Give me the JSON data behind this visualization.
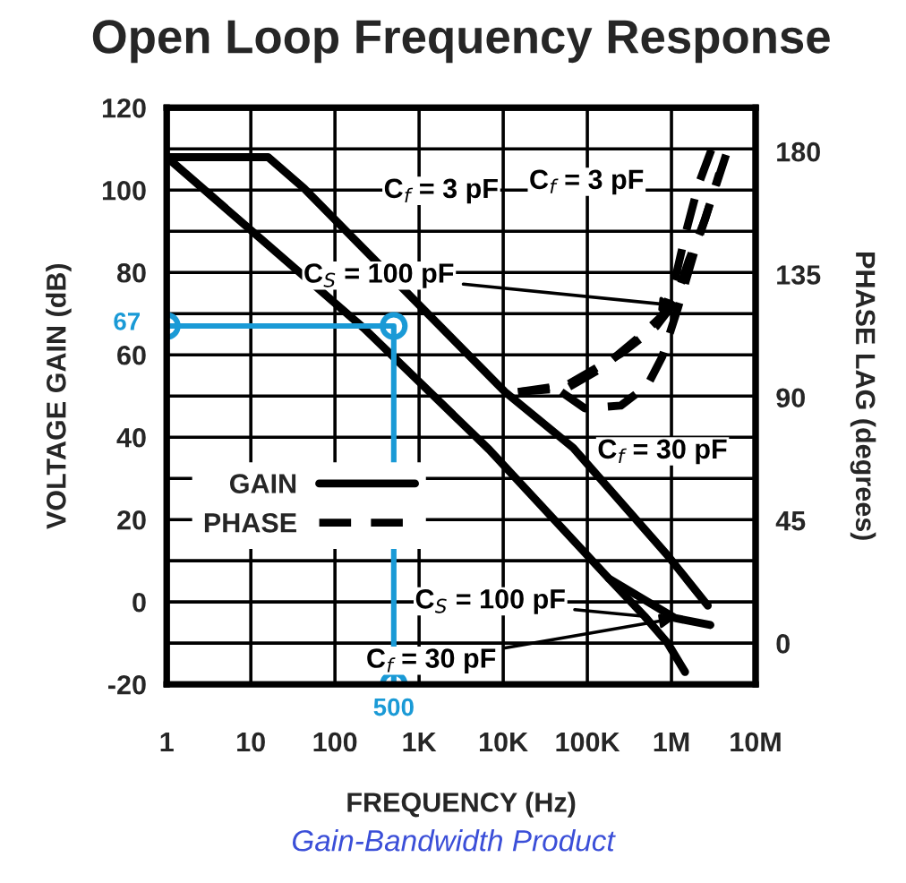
{
  "chart_data": {
    "type": "line",
    "title": "Open Loop Frequency Response",
    "xlabel": "FREQUENCY (Hz)",
    "ylabel": "VOLTAGE GAIN (dB)",
    "y2label": "PHASE LAG (degrees)",
    "log": "x",
    "grid": true,
    "legend": "center left",
    "xlim": [
      1,
      10000000
    ],
    "xticks": [
      1,
      10,
      100,
      {
        "value": 1000,
        "label": "1K"
      },
      {
        "value": 10000,
        "label": "10K"
      },
      {
        "value": 100000,
        "label": "100K"
      },
      {
        "value": 1000000,
        "label": "1M"
      },
      {
        "value": 10000000,
        "label": "10M"
      }
    ],
    "ylim": [
      -20,
      120
    ],
    "yticks": [
      -20,
      {
        "value": -10,
        "label": null
      },
      0,
      {
        "value": 10,
        "label": null
      },
      20,
      {
        "value": 30,
        "label": null
      },
      40,
      {
        "value": 50,
        "label": null
      },
      60,
      {
        "value": 70,
        "label": null
      },
      80,
      {
        "value": 90,
        "label": null
      },
      100,
      {
        "value": 110,
        "label": null
      },
      120
    ],
    "y2lim": [
      -15,
      196
    ],
    "y2ticks": [
      0,
      45,
      90,
      135,
      180
    ],
    "series": [
      {
        "name": "GAIN",
        "color": "#000000",
        "line_style": "solid",
        "x": [
          1,
          16,
          43,
          10500,
          68000,
          900000,
          1450000,
          2700000
        ],
        "values": [
          108,
          108,
          100.4,
          51,
          37.4,
          11.3,
          6,
          -0.9
        ]
      },
      {
        "color": "#000000",
        "line_style": "solid",
        "x": [
          1,
          220,
          6800,
          180000,
          1100000,
          2900000
        ],
        "values": [
          108,
          66.5,
          37,
          5.7,
          -3.9,
          -5.6
        ]
      },
      {
        "color": "#000000",
        "line_style": "solid",
        "x": [
          180000,
          480000,
          900000,
          1450000
        ],
        "values": [
          5.7,
          -3.5,
          -10,
          -17
        ]
      },
      {
        "name": "PHASE",
        "color": "#000000",
        "line_style": "dashed",
        "axis": "y2",
        "x": [
          15000,
          57000,
          153000,
          410000,
          780000,
          1100000,
          1500000,
          2100000,
          3100000
        ],
        "values": [
          92,
          93.4,
          101,
          112,
          120,
          133,
          151,
          168,
          182
        ]
      },
      {
        "color": "#000000",
        "line_style": "dashed",
        "axis": "y2",
        "x": [
          15000,
          57000,
          250000,
          660000,
          1100000,
          1600000,
          2500000,
          3700000
        ],
        "values": [
          92,
          94.5,
          106,
          116,
          125,
          140,
          155,
          172
        ]
      },
      {
        "color": "#000000",
        "line_style": "dashed",
        "axis": "y2",
        "x": [
          49000,
          93000,
          250000,
          520000,
          780000,
          1200000,
          1900000,
          3100000,
          4700000
        ],
        "values": [
          92,
          86,
          87,
          94.5,
          105,
          123,
          144,
          164,
          181
        ]
      },
      {
        "color": "#1a9ad6",
        "line_style": "solid",
        "marker": "circle",
        "x": [
          1,
          500,
          500
        ],
        "values": [
          67,
          67,
          -20
        ]
      }
    ],
    "annotations": [
      {
        "text": "C$_{f}$ = 3 pF",
        "x": 70,
        "y": 98
      },
      {
        "text": "C$_{S}$ = 100 pF",
        "x": 1100000,
        "y": 72
      },
      {
        "text": "C$_{f}$ = 3 pF",
        "x": 2100000,
        "y": 102
      },
      {
        "text": "C$_{f}$ = 30 pF",
        "x": 230000,
        "y": 45
      },
      {
        "text": "C$_{S}$ = 100 pF",
        "x": 480000,
        "y": -3.5
      },
      {
        "text": "C$_{f}$ = 30 pF",
        "x": 1100000,
        "y": -4
      },
      {
        "text": "67",
        "x": 1,
        "y": 67
      },
      {
        "text": "500",
        "x": 500,
        "y": -20
      },
      "Gain-Bandwidth Product"
    ]
  }
}
